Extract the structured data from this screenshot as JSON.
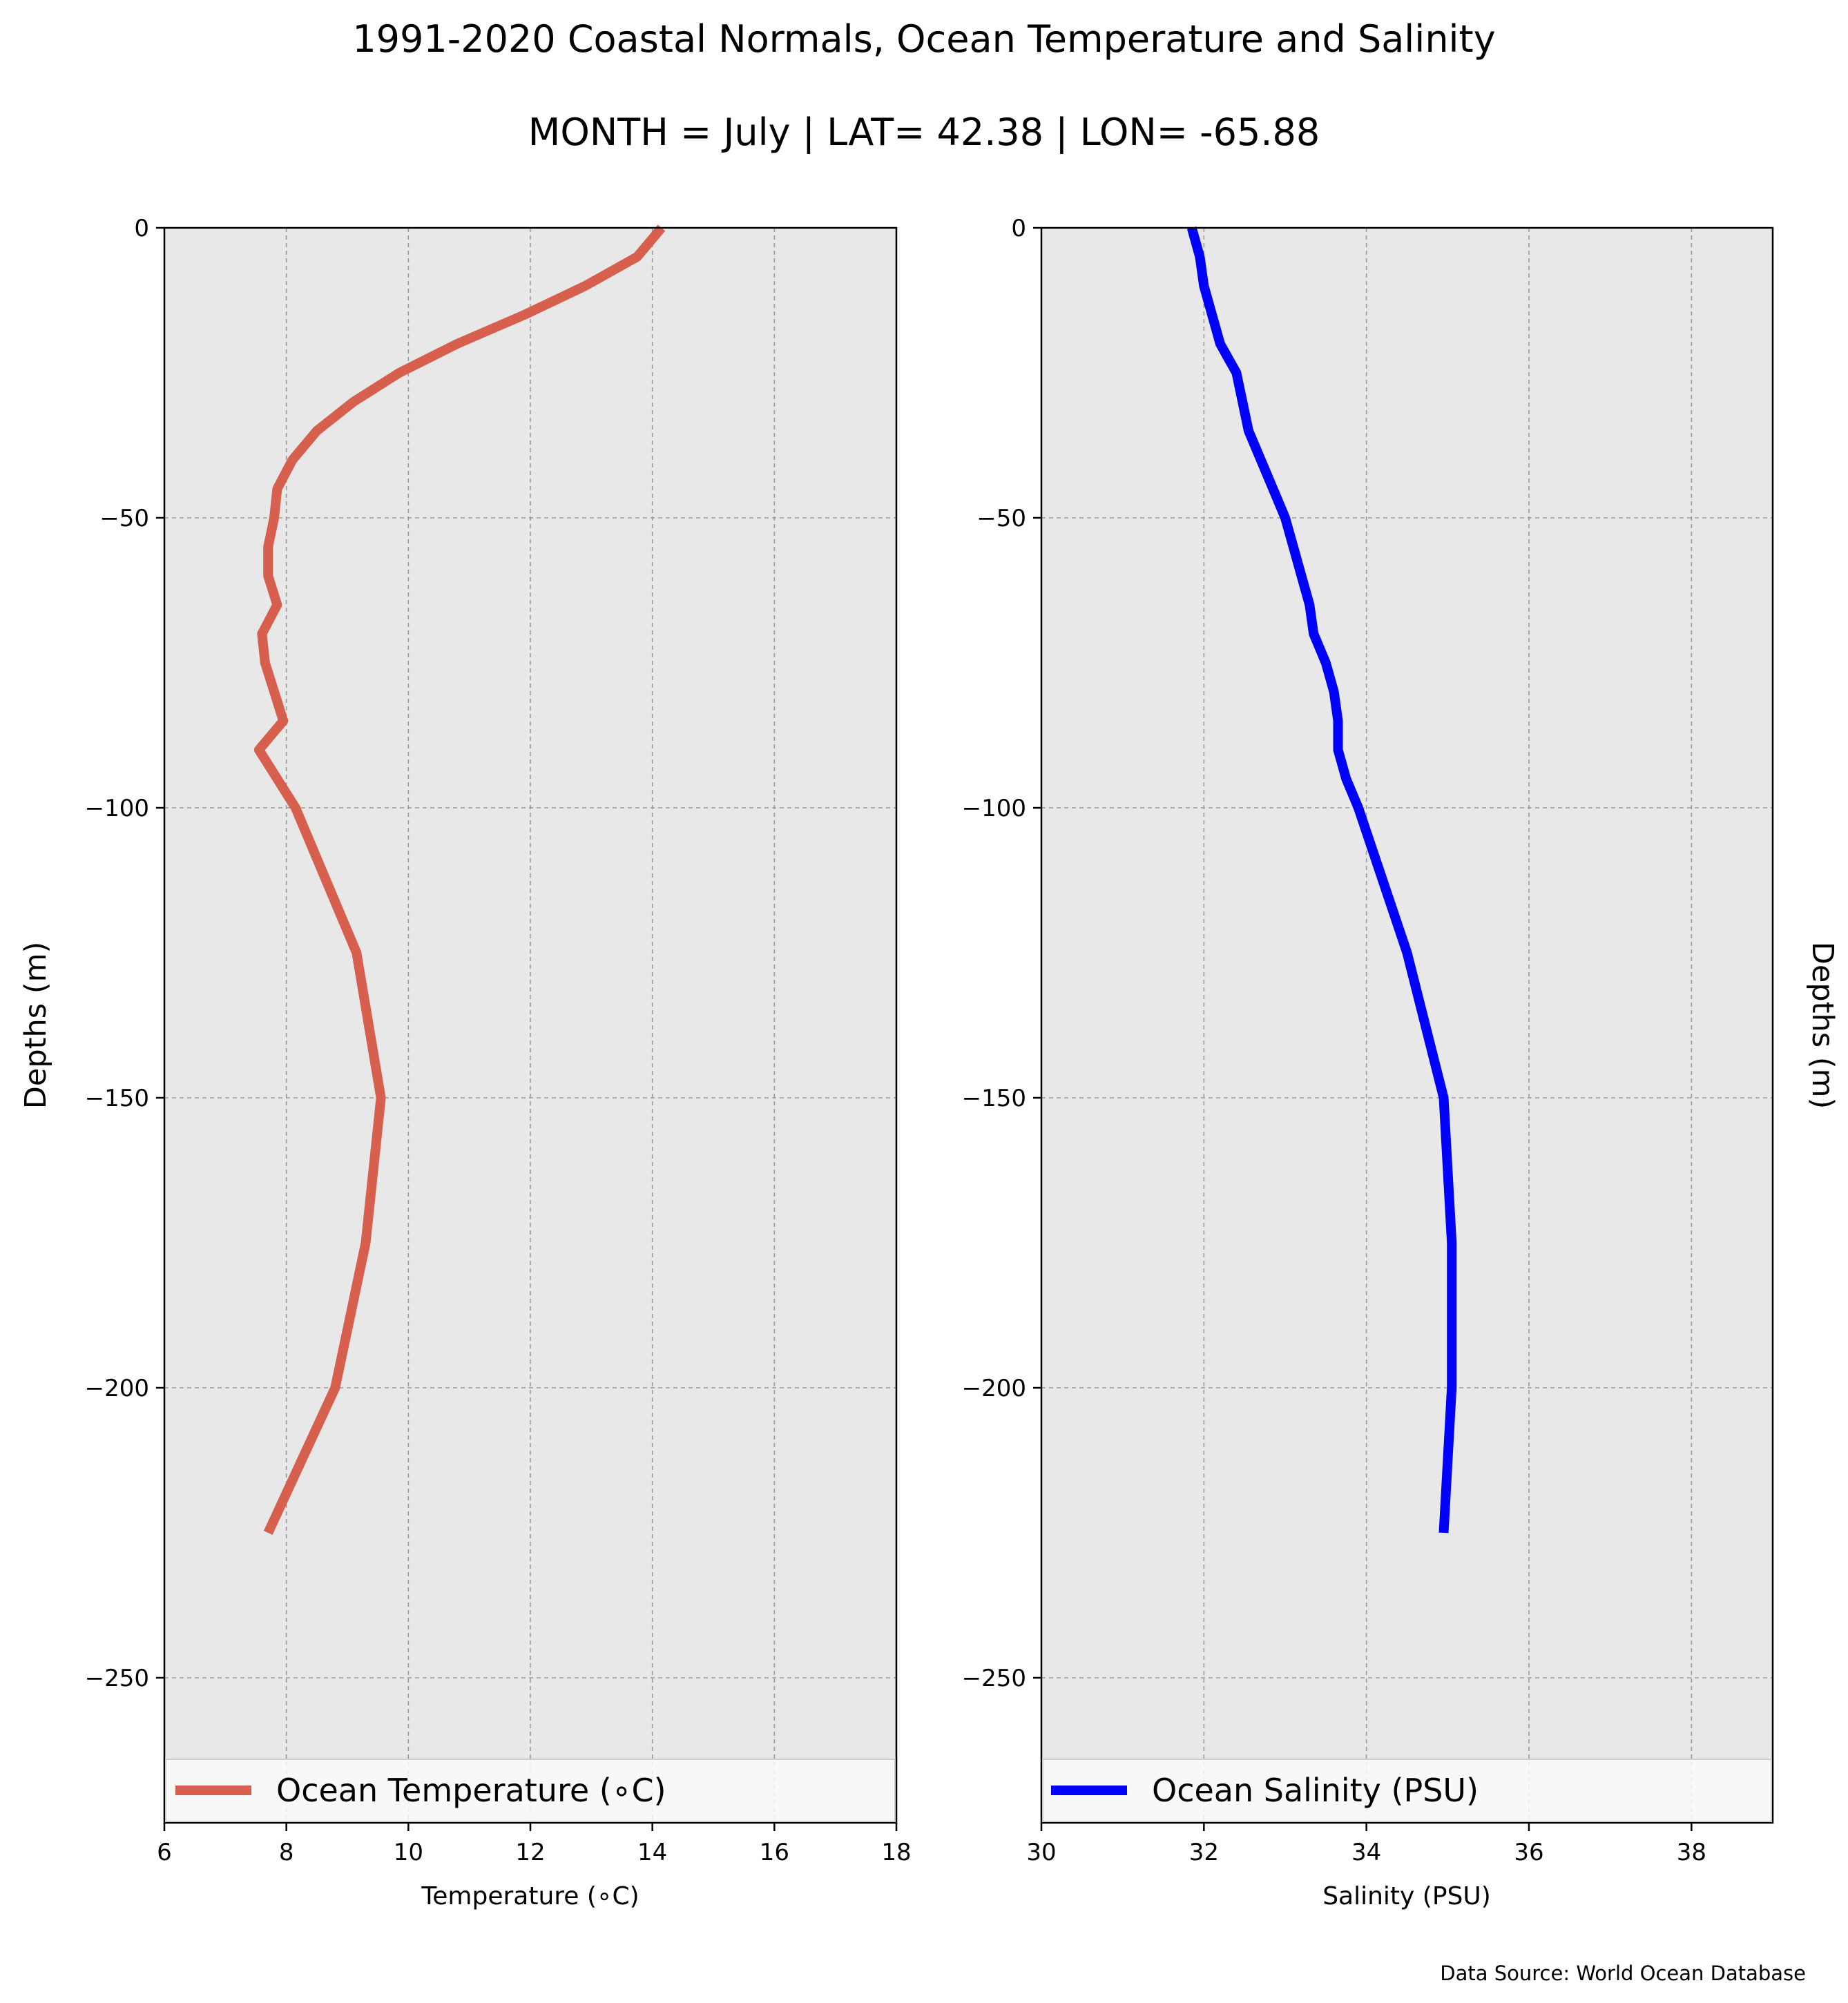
{
  "title": "1991-2020 Coastal Normals, Ocean Temperature and Salinity",
  "subtitle": "MONTH = July | LAT= 42.38 | LON= -65.88",
  "source": "Data Source: World Ocean Database",
  "chart_data": [
    {
      "type": "line",
      "xlabel": "Temperature (∘C)",
      "ylabel": "Depths (m)",
      "xlim": [
        6,
        18
      ],
      "ylim": [
        -275,
        0
      ],
      "xticks": [
        "6",
        "8",
        "10",
        "12",
        "14",
        "16",
        "18"
      ],
      "yticks": [
        "0",
        "−50",
        "−100",
        "−150",
        "−200",
        "−250"
      ],
      "grid": true,
      "legend": "lower-center",
      "color": "#d6604d",
      "series": [
        {
          "name": "Ocean Temperature (∘C)",
          "x": [
            14.15,
            13.75,
            12.9,
            11.9,
            10.8,
            9.85,
            9.1,
            8.5,
            8.1,
            7.85,
            7.8,
            7.7,
            7.7,
            7.85,
            7.6,
            7.65,
            7.95,
            7.55,
            8.15,
            9.15,
            9.55,
            9.3,
            8.8,
            7.7
          ],
          "y": [
            0,
            -5,
            -10,
            -15,
            -20,
            -25,
            -30,
            -35,
            -40,
            -45,
            -50,
            -55,
            -60,
            -65,
            -70,
            -75,
            -85,
            -90,
            -100,
            -125,
            -150,
            -175,
            -200,
            -225
          ]
        }
      ]
    },
    {
      "type": "line",
      "xlabel": "Salinity (PSU)",
      "ylabel": "Depths (m)",
      "xlim": [
        30,
        39
      ],
      "ylim": [
        -275,
        0
      ],
      "xticks": [
        "30",
        "32",
        "34",
        "36",
        "38"
      ],
      "yticks": [
        "0",
        "−50",
        "−100",
        "−150",
        "−200",
        "−250"
      ],
      "grid": true,
      "legend": "lower-center",
      "color": "#0000ff",
      "series": [
        {
          "name": "Ocean Salinity (PSU)",
          "x": [
            31.85,
            31.95,
            32.0,
            32.2,
            32.4,
            32.55,
            32.7,
            32.85,
            33.0,
            33.1,
            33.2,
            33.3,
            33.35,
            33.5,
            33.6,
            33.65,
            33.65,
            33.75,
            33.9,
            34.5,
            34.95,
            35.05,
            35.05,
            34.95
          ],
          "y": [
            0,
            -5,
            -10,
            -20,
            -25,
            -35,
            -40,
            -45,
            -50,
            -55,
            -60,
            -65,
            -70,
            -75,
            -80,
            -85,
            -90,
            -95,
            -100,
            -125,
            -150,
            -175,
            -200,
            -225
          ]
        }
      ]
    }
  ]
}
